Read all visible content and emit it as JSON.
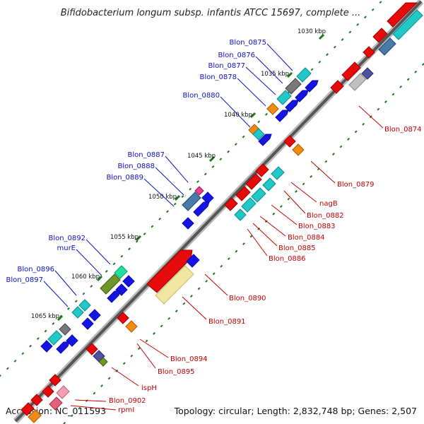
{
  "title": "Bifidobacterium longum subsp. infantis ATCC 15697, complete ...",
  "footer": {
    "accession": "Accession: NC_011593",
    "topology": "Topology: circular; Length: 2,832,748 bp; Genes: 2,507"
  },
  "ticks": [
    "1030 kbp",
    "1035 kbp",
    "1040 kbp",
    "1045 kbp",
    "1050 kbp",
    "1055 kbp",
    "1060 kbp",
    "1065 kbp"
  ],
  "labels_left": [
    "Blon_0875",
    "Blon_0876",
    "Blon_0877",
    "Blon_0878",
    "Blon_0880",
    "Blon_0887",
    "Blon_0888",
    "Blon_0889",
    "Blon_0892",
    "murE",
    "Blon_0896",
    "Blon_0897"
  ],
  "labels_right": [
    "Blon_0874",
    "Blon_0879",
    "nagB",
    "Blon_0882",
    "Blon_0883",
    "Blon_0884",
    "Blon_0885",
    "Blon_0886",
    "Blon_0890",
    "Blon_0891",
    "Blon_0894",
    "Blon_0895",
    "ispH",
    "Blon_0902",
    "rpmI"
  ],
  "colors": {
    "forward_cds": "#1414e6",
    "reverse_cds": "#e60a0a",
    "cyan_feature": "#20c8c8",
    "orange_feature": "#f08c14",
    "gray_feature": "#787878",
    "olive_feature": "#6e9628",
    "steel_feature": "#4a7aa8",
    "pale_yellow_feature": "#f0e6a0",
    "kbp_tick": "#187818"
  }
}
